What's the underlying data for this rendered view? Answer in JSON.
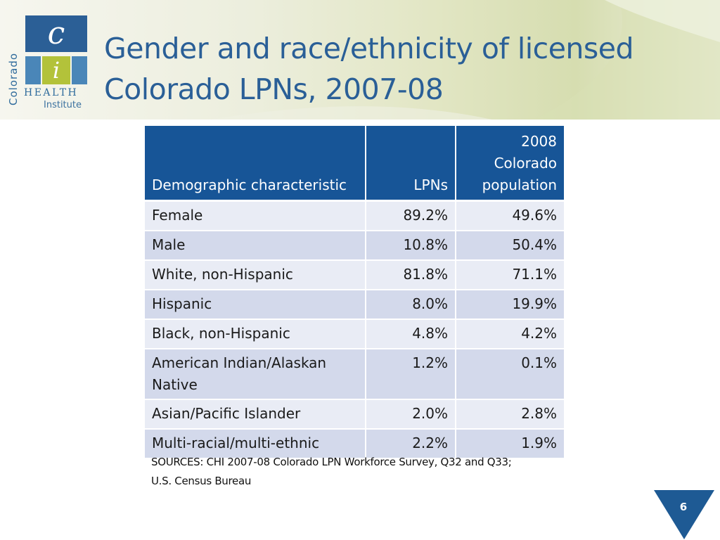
{
  "logo": {
    "vertical_text": "Colorado",
    "c_letter": "c",
    "i_letter": "i",
    "health_text": "HEALTH",
    "institute_text": "Institute"
  },
  "title": {
    "line1": "Gender and race/ethnicity of licensed",
    "line2": "Colorado LPNs, 2007-08"
  },
  "table": {
    "headers": [
      "Demographic characteristic",
      "LPNs",
      "2008 Colorado population"
    ],
    "rows": [
      [
        "Female",
        "89.2%",
        "49.6%"
      ],
      [
        "Male",
        "10.8%",
        "50.4%"
      ],
      [
        "White, non-Hispanic",
        "81.8%",
        "71.1%"
      ],
      [
        "Hispanic",
        "8.0%",
        "19.9%"
      ],
      [
        "Black, non-Hispanic",
        "4.8%",
        "4.2%"
      ],
      [
        "American Indian/Alaskan Native",
        "1.2%",
        "0.1%"
      ],
      [
        "Asian/Pacific Islander",
        "2.0%",
        "2.8%"
      ],
      [
        "Multi-racial/multi-ethnic",
        "2.2%",
        "1.9%"
      ]
    ]
  },
  "sources": {
    "line1": "SOURCES: CHI 2007-08 Colorado LPN Workforce Survey, Q32 and Q33;",
    "line2": "U.S. Census Bureau"
  },
  "page_number": "6",
  "colors": {
    "title": "#2a5f97",
    "table_header": "#175597",
    "row_light": "#e9ecf5",
    "row_dark": "#d3d9eb",
    "page_marker": "#1e5a94"
  }
}
